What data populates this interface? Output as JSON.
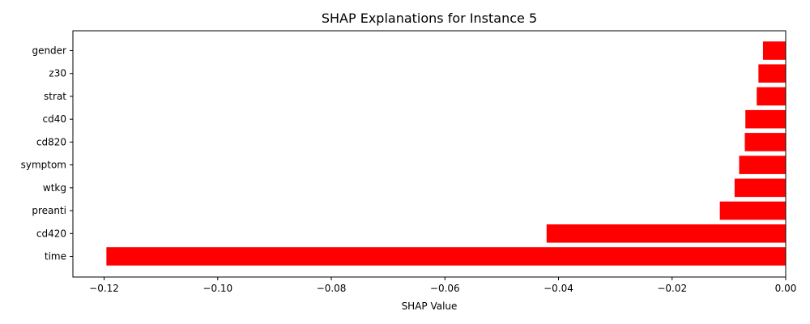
{
  "chart_data": {
    "type": "bar",
    "orientation": "horizontal",
    "title": "SHAP Explanations for Instance 5",
    "xlabel": "SHAP Value",
    "ylabel": "",
    "xlim": [
      -0.1255,
      0.0
    ],
    "xticks": [
      -0.12,
      -0.1,
      -0.08,
      -0.06,
      -0.04,
      -0.02,
      0.0
    ],
    "xtick_labels": [
      "−0.12",
      "−0.10",
      "−0.08",
      "−0.06",
      "−0.04",
      "−0.02",
      "0.00"
    ],
    "categories": [
      "gender",
      "z30",
      "strat",
      "cd40",
      "cd820",
      "symptom",
      "wtkg",
      "preanti",
      "cd420",
      "time"
    ],
    "values": [
      -0.004,
      -0.0048,
      -0.0051,
      -0.0071,
      -0.0072,
      -0.0082,
      -0.009,
      -0.0116,
      -0.0421,
      -0.1196
    ],
    "bar_color": "#ff0000",
    "grid": false,
    "legend": "none"
  }
}
